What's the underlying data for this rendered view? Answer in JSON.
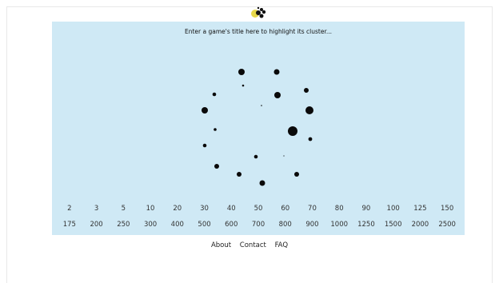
{
  "search": {
    "placeholder": "Enter a game's title here to highlight its cluster..."
  },
  "thresholds": {
    "row1": [
      "2",
      "3",
      "5",
      "10",
      "20",
      "30",
      "40",
      "50",
      "60",
      "70",
      "80",
      "90",
      "100",
      "125",
      "150"
    ],
    "row2": [
      "175",
      "200",
      "250",
      "300",
      "400",
      "500",
      "600",
      "700",
      "800",
      "900",
      "1000",
      "1250",
      "1500",
      "2000",
      "2500"
    ]
  },
  "footer": {
    "about": "About",
    "contact": "Contact",
    "faq": "FAQ"
  },
  "colors": {
    "panel": "#cfe9f5",
    "dot": "#0a0a0a",
    "logo_accent": "#e7d84a"
  },
  "icons": {
    "logo": "cluster-logo-icon"
  }
}
